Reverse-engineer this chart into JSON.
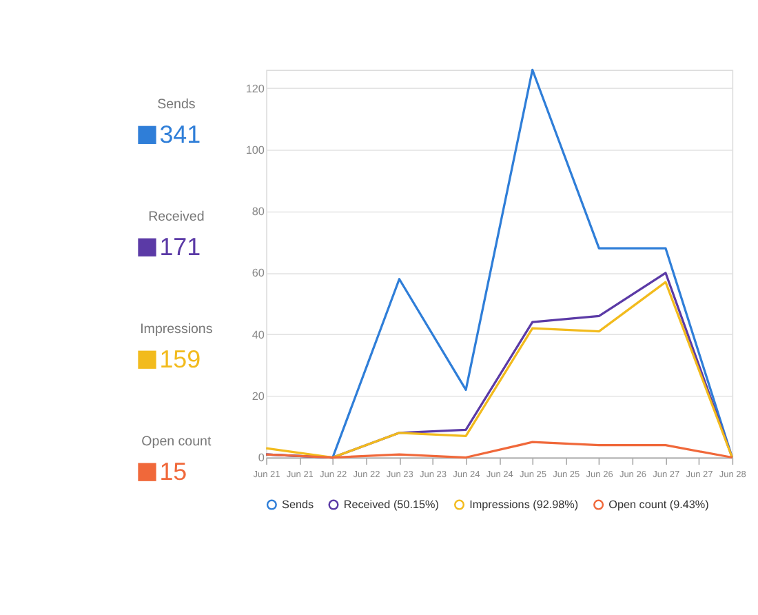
{
  "chart_data": {
    "type": "line",
    "categories": [
      "Jun 21",
      "Jun 21",
      "Jun 22",
      "Jun 22",
      "Jun 23",
      "Jun 23",
      "Jun 24",
      "Jun 24",
      "Jun 25",
      "Jun 25",
      "Jun 26",
      "Jun 26",
      "Jun 27",
      "Jun 27",
      "Jun 28"
    ],
    "series": [
      {
        "name": "Sends",
        "color": "#2f7ed8",
        "values": [
          1,
          null,
          0,
          null,
          58,
          null,
          22,
          null,
          126,
          null,
          68,
          null,
          68,
          null,
          0
        ]
      },
      {
        "name": "Received (50.15%)",
        "color": "#5b3aa6",
        "values": [
          1,
          null,
          0,
          null,
          8,
          null,
          9,
          null,
          44,
          null,
          46,
          null,
          60,
          null,
          0
        ]
      },
      {
        "name": "Impressions (92.98%)",
        "color": "#f2bb1d",
        "values": [
          3,
          null,
          0,
          null,
          8,
          null,
          7,
          null,
          42,
          null,
          41,
          null,
          57,
          null,
          0
        ]
      },
      {
        "name": "Open count (9.43%)",
        "color": "#f0683a",
        "values": [
          1,
          null,
          0,
          null,
          1,
          null,
          0,
          null,
          5,
          null,
          4,
          null,
          4,
          null,
          0
        ]
      }
    ],
    "ylim": [
      0,
      126
    ],
    "yticks": [
      0,
      20,
      40,
      60,
      80,
      100,
      120
    ],
    "grid": "y",
    "legend": "bottom",
    "marker": "none",
    "line_style": "solid",
    "annotations": [
      "Sends",
      "341",
      "Received",
      "171",
      "Impressions",
      "159",
      "Open count",
      "15"
    ]
  }
}
